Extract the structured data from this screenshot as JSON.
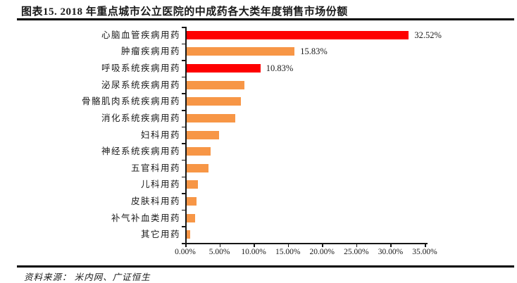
{
  "header": {
    "title": "图表15. 2018 年重点城市公立医院的中成药各大类年度销售市场份额"
  },
  "footer": {
    "source": "资料来源： 米内网、广证恒生"
  },
  "colors": {
    "highlight_bar": "#FE0000",
    "normal_bar": "#F79646",
    "axis": "#161616",
    "rule": "#000000",
    "text": "#1a1a1a"
  },
  "chart_data": {
    "type": "bar",
    "orientation": "horizontal",
    "title": "",
    "xlabel": "",
    "ylabel": "",
    "grid": false,
    "legend": "none",
    "categories": [
      "心脑血管疾病用药",
      "肿瘤疾病用药",
      "呼吸系统疾病用药",
      "泌尿系统疾病用药",
      "骨骼肌肉系统疾病用药",
      "消化系统疾病用药",
      "妇科用药",
      "神经系统疾病用药",
      "五官科用药",
      "儿科用药",
      "皮肤科用药",
      "补气补血类用药",
      "其它用药"
    ],
    "values": [
      32.52,
      15.83,
      10.83,
      8.5,
      8.0,
      7.2,
      4.8,
      3.5,
      3.2,
      1.7,
      1.5,
      1.3,
      0.6
    ],
    "data_labels": [
      "32.52%",
      "15.83%",
      "10.83%",
      "",
      "",
      "",
      "",
      "",
      "",
      "",
      "",
      "",
      ""
    ],
    "bar_colors": [
      "#FE0000",
      "#F79646",
      "#FE0000",
      "#F79646",
      "#F79646",
      "#F79646",
      "#F79646",
      "#F79646",
      "#F79646",
      "#F79646",
      "#F79646",
      "#F79646",
      "#F79646"
    ],
    "xlim": [
      0,
      35
    ],
    "x_tick_step": 5,
    "x_tick_labels": [
      "0.00%",
      "5.00%",
      "10.00%",
      "15.00%",
      "20.00%",
      "25.00%",
      "30.00%",
      "35.00%"
    ]
  }
}
